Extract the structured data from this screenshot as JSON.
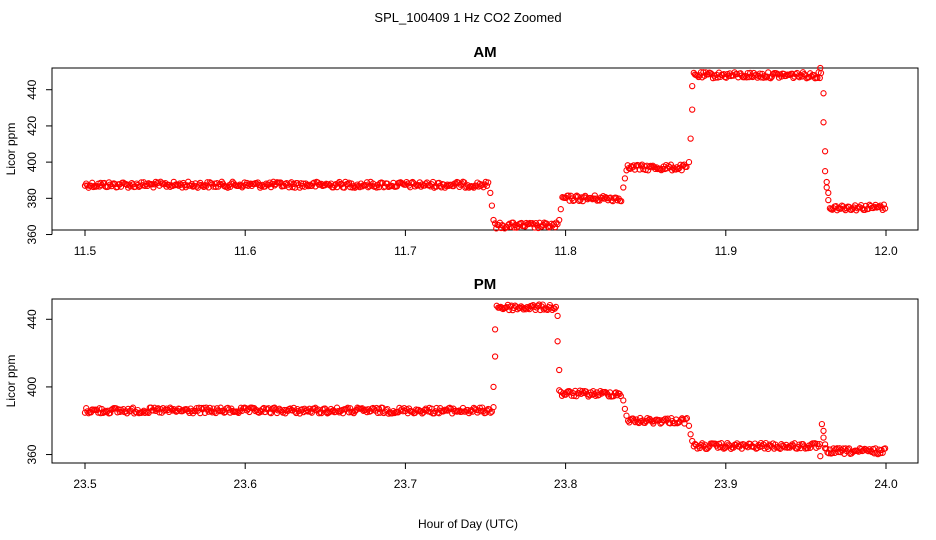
{
  "title": "SPL_100409  1 Hz CO2 Zoomed",
  "xlabel": "Hour of Day (UTC)",
  "colors": {
    "points": "#ff0000",
    "axes": "#000000",
    "background": "#ffffff"
  },
  "chart_data": [
    {
      "type": "scatter",
      "title": "AM",
      "ylabel": "Licor ppm",
      "xlim": [
        11.5,
        12.0
      ],
      "ylim": [
        362.5,
        452
      ],
      "xticks": [
        11.5,
        11.6,
        11.7,
        11.8,
        11.9,
        12.0
      ],
      "xtick_labels": [
        "11.5",
        "11.6",
        "11.7",
        "11.8",
        "11.9",
        "12.0"
      ],
      "yticks": [
        360,
        380,
        400,
        420,
        440
      ],
      "ytick_labels": [
        "360",
        "380",
        "400",
        "420",
        "440"
      ],
      "grid": false,
      "marker": "open-circle",
      "segments": [
        {
          "x_start": 11.5,
          "x_end": 11.752,
          "y": 387.5
        },
        {
          "x_start": 11.756,
          "x_end": 11.795,
          "y": 365
        },
        {
          "x_start": 11.798,
          "x_end": 11.835,
          "y": 380
        },
        {
          "x_start": 11.838,
          "x_end": 11.876,
          "y": 397
        },
        {
          "x_start": 11.88,
          "x_end": 11.96,
          "y": 448
        },
        {
          "x_start": 11.965,
          "x_end": 12.0,
          "y": 375
        }
      ],
      "transition_points": [
        {
          "x": 11.753,
          "y": 383
        },
        {
          "x": 11.754,
          "y": 376
        },
        {
          "x": 11.755,
          "y": 368
        },
        {
          "x": 11.796,
          "y": 368
        },
        {
          "x": 11.797,
          "y": 374
        },
        {
          "x": 11.836,
          "y": 386
        },
        {
          "x": 11.837,
          "y": 391
        },
        {
          "x": 11.877,
          "y": 400
        },
        {
          "x": 11.878,
          "y": 413
        },
        {
          "x": 11.879,
          "y": 429
        },
        {
          "x": 11.879,
          "y": 442
        },
        {
          "x": 11.959,
          "y": 452
        },
        {
          "x": 11.961,
          "y": 438
        },
        {
          "x": 11.961,
          "y": 422
        },
        {
          "x": 11.962,
          "y": 406
        },
        {
          "x": 11.962,
          "y": 395
        },
        {
          "x": 11.963,
          "y": 389
        },
        {
          "x": 11.963,
          "y": 386
        },
        {
          "x": 11.964,
          "y": 383
        },
        {
          "x": 11.964,
          "y": 379
        }
      ]
    },
    {
      "type": "scatter",
      "title": "PM",
      "ylabel": "Licor ppm",
      "xlim": [
        23.5,
        24.0
      ],
      "ylim": [
        355,
        452
      ],
      "xticks": [
        23.5,
        23.6,
        23.7,
        23.8,
        23.9,
        24.0
      ],
      "xtick_labels": [
        "23.5",
        "23.6",
        "23.7",
        "23.8",
        "23.9",
        "24.0"
      ],
      "yticks": [
        360,
        400,
        440
      ],
      "ytick_labels": [
        "360",
        "400",
        "440"
      ],
      "grid": false,
      "marker": "open-circle",
      "segments": [
        {
          "x_start": 23.5,
          "x_end": 23.754,
          "y": 386
        },
        {
          "x_start": 23.758,
          "x_end": 23.794,
          "y": 447
        },
        {
          "x_start": 23.797,
          "x_end": 23.835,
          "y": 396
        },
        {
          "x_start": 23.839,
          "x_end": 23.876,
          "y": 380
        },
        {
          "x_start": 23.88,
          "x_end": 23.959,
          "y": 365
        },
        {
          "x_start": 23.962,
          "x_end": 24.0,
          "y": 362
        }
      ],
      "transition_points": [
        {
          "x": 23.755,
          "y": 388
        },
        {
          "x": 23.755,
          "y": 400
        },
        {
          "x": 23.756,
          "y": 418
        },
        {
          "x": 23.756,
          "y": 434
        },
        {
          "x": 23.757,
          "y": 448
        },
        {
          "x": 23.795,
          "y": 442
        },
        {
          "x": 23.795,
          "y": 427
        },
        {
          "x": 23.796,
          "y": 410
        },
        {
          "x": 23.796,
          "y": 398
        },
        {
          "x": 23.836,
          "y": 392
        },
        {
          "x": 23.837,
          "y": 387
        },
        {
          "x": 23.838,
          "y": 383
        },
        {
          "x": 23.877,
          "y": 377
        },
        {
          "x": 23.878,
          "y": 372
        },
        {
          "x": 23.879,
          "y": 368
        },
        {
          "x": 23.959,
          "y": 359
        },
        {
          "x": 23.96,
          "y": 378
        },
        {
          "x": 23.961,
          "y": 374
        },
        {
          "x": 23.961,
          "y": 370
        },
        {
          "x": 23.962,
          "y": 366
        }
      ]
    }
  ]
}
